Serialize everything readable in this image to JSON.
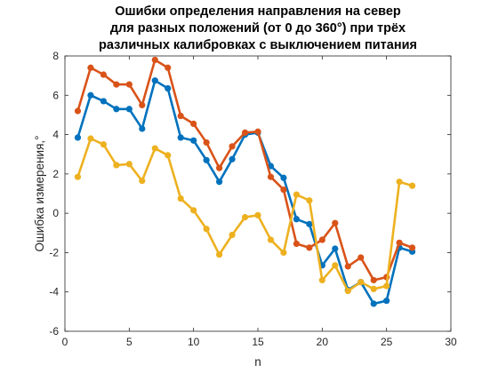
{
  "chart_data": {
    "type": "line",
    "title": [
      "Ошибки определения направления на север",
      "для разных положений (от 0 до 360°) при трёх",
      "различных калибровках с выключением питания"
    ],
    "xlabel": "n",
    "ylabel": "Ошибка измерения,°",
    "xlim": [
      0,
      30
    ],
    "ylim": [
      -6,
      8
    ],
    "xticks": [
      0,
      5,
      10,
      15,
      20,
      25,
      30
    ],
    "yticks": [
      -6,
      -4,
      -2,
      0,
      2,
      4,
      6,
      8
    ],
    "grid": false,
    "legend": null,
    "x": [
      1,
      2,
      3,
      4,
      5,
      6,
      7,
      8,
      9,
      10,
      11,
      12,
      13,
      14,
      15,
      16,
      17,
      18,
      19,
      20,
      21,
      22,
      23,
      24,
      25,
      26,
      27
    ],
    "series": [
      {
        "color": "#0072BD",
        "values": [
          3.85,
          6.0,
          5.7,
          5.3,
          5.3,
          4.3,
          6.75,
          6.35,
          3.85,
          3.7,
          2.7,
          1.6,
          2.75,
          4.0,
          4.1,
          2.4,
          1.8,
          -0.3,
          -0.55,
          -2.65,
          -1.8,
          -3.9,
          -3.5,
          -4.6,
          -4.45,
          -1.75,
          -1.95
        ]
      },
      {
        "color": "#D95319",
        "values": [
          5.2,
          7.4,
          7.05,
          6.55,
          6.55,
          5.5,
          7.8,
          7.4,
          4.95,
          4.55,
          3.6,
          2.3,
          3.4,
          4.1,
          4.15,
          1.85,
          1.2,
          -1.55,
          -1.75,
          -1.35,
          -0.5,
          -2.7,
          -2.25,
          -3.4,
          -3.25,
          -1.5,
          -1.75
        ]
      },
      {
        "color": "#EDB120",
        "values": [
          1.85,
          3.8,
          3.5,
          2.45,
          2.5,
          1.65,
          3.3,
          2.95,
          0.75,
          0.15,
          -0.8,
          -2.1,
          -1.1,
          -0.2,
          -0.1,
          -1.35,
          -2.0,
          0.95,
          0.65,
          -3.4,
          -2.65,
          -3.95,
          -3.5,
          -3.85,
          -3.7,
          1.6,
          1.4
        ]
      }
    ]
  }
}
